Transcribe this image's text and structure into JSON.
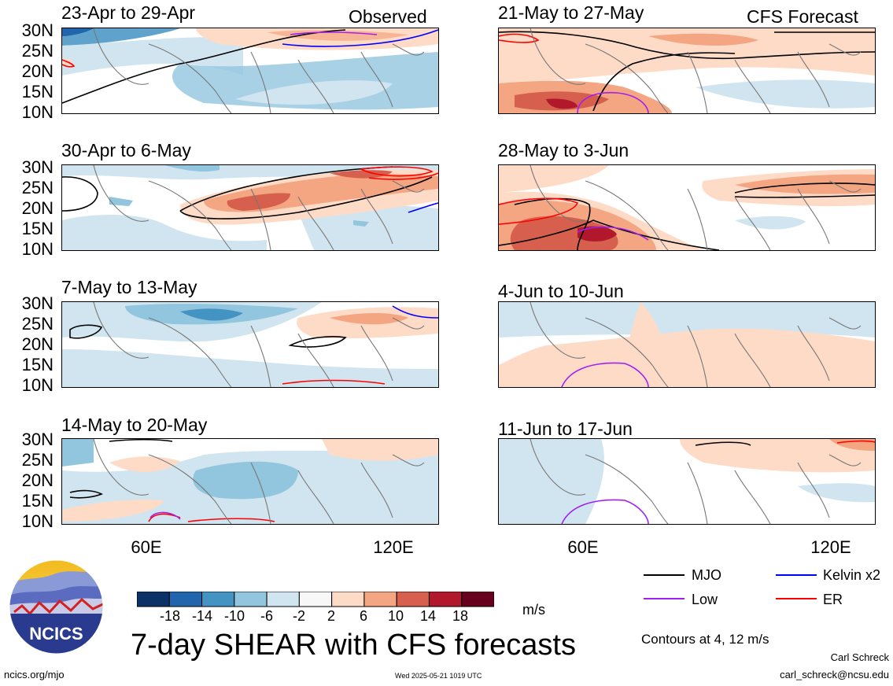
{
  "figure": {
    "main_title": "7-day SHEAR with CFS forecasts",
    "units": "m/s",
    "contours_note": "Contours at 4, 12 m/s",
    "author": "Carl Schreck",
    "email": "carl_schreck@ncsu.edu",
    "url": "ncics.org/mjo",
    "timestamp": "Wed 2025-05-21 1019 UTC",
    "logo_text": "NCICS"
  },
  "columns": {
    "left_tag": "Observed",
    "right_tag": "CFS Forecast"
  },
  "panels": [
    {
      "title": "23-Apr to 29-Apr",
      "column": "observed"
    },
    {
      "title": "30-Apr to 6-May",
      "column": "observed"
    },
    {
      "title": "7-May to 13-May",
      "column": "observed"
    },
    {
      "title": "14-May to 20-May",
      "column": "observed"
    },
    {
      "title": "21-May to 27-May",
      "column": "forecast"
    },
    {
      "title": "28-May to 3-Jun",
      "column": "forecast"
    },
    {
      "title": "4-Jun to 10-Jun",
      "column": "forecast"
    },
    {
      "title": "11-Jun to 17-Jun",
      "column": "forecast"
    }
  ],
  "axes": {
    "lat_ticks": [
      "30N",
      "25N",
      "20N",
      "15N",
      "10N"
    ],
    "lon_ticks": [
      "60E",
      "120E"
    ]
  },
  "colorbar": {
    "labels": [
      "-18",
      "-14",
      "-10",
      "-6",
      "-2",
      "2",
      "6",
      "10",
      "14",
      "18"
    ],
    "colors": [
      "#0c3166",
      "#2166ac",
      "#4393c3",
      "#92c5de",
      "#d1e5f0",
      "#f7f7f7",
      "#fddbc7",
      "#f4a582",
      "#d6604d",
      "#b2182b",
      "#67001f"
    ]
  },
  "legend": {
    "items": [
      {
        "label": "MJO",
        "color": "#000000"
      },
      {
        "label": "Kelvin x2",
        "color": "#0000ff"
      },
      {
        "label": "Low",
        "color": "#a020f0"
      },
      {
        "label": "ER",
        "color": "#ff0000"
      }
    ]
  }
}
